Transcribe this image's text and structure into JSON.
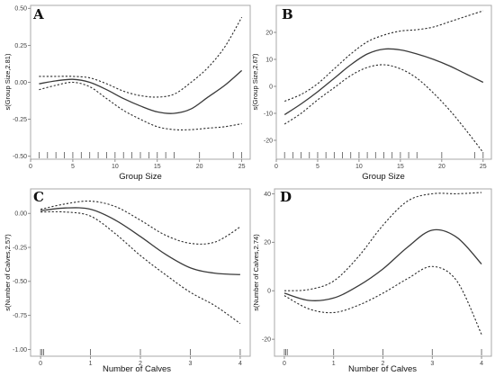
{
  "chart_data": [
    {
      "panel": "A",
      "type": "line",
      "xlabel": "Group Size",
      "ylabel": "s(Group Size,2.81)",
      "xlim": [
        0,
        26
      ],
      "ylim": [
        -0.52,
        0.52
      ],
      "xticks": [
        0,
        5,
        10,
        15,
        20,
        25
      ],
      "yticks": [
        -0.5,
        -0.25,
        0,
        0.25,
        0.5
      ],
      "ytick_labels": [
        "-0.50",
        "-0.25",
        "0.00",
        "0.25",
        "0.50"
      ],
      "x": [
        1,
        3,
        5,
        7,
        9,
        11,
        13,
        15,
        17,
        19,
        21,
        23,
        25
      ],
      "fit": [
        -0.01,
        0.01,
        0.02,
        0.0,
        -0.05,
        -0.11,
        -0.16,
        -0.2,
        -0.21,
        -0.18,
        -0.1,
        -0.02,
        0.08
      ],
      "upper": [
        0.04,
        0.04,
        0.04,
        0.03,
        -0.01,
        -0.06,
        -0.09,
        -0.1,
        -0.08,
        0.0,
        0.1,
        0.24,
        0.44
      ],
      "lower": [
        -0.05,
        -0.02,
        0.0,
        -0.03,
        -0.11,
        -0.19,
        -0.25,
        -0.3,
        -0.32,
        -0.32,
        -0.31,
        -0.3,
        -0.28
      ],
      "rug": [
        1,
        2,
        3,
        4,
        5,
        6,
        7,
        8,
        9,
        10,
        11,
        12,
        13,
        14,
        15,
        16,
        17,
        20,
        24,
        25
      ],
      "grid": false
    },
    {
      "panel": "B",
      "type": "line",
      "xlabel": "Group Size",
      "ylabel": "s(Group Size,2.67)",
      "xlim": [
        0,
        26
      ],
      "ylim": [
        -27,
        30
      ],
      "xticks": [
        0,
        5,
        10,
        15,
        20,
        25
      ],
      "yticks": [
        -20,
        -10,
        0,
        10,
        20
      ],
      "ytick_labels": [
        "-20",
        "-10",
        "0",
        "10",
        "20"
      ],
      "x": [
        1,
        3,
        5,
        7,
        9,
        11,
        13,
        15,
        17,
        19,
        21,
        23,
        25
      ],
      "fit": [
        -10.5,
        -6.5,
        -2.0,
        3.0,
        8.0,
        12.0,
        13.8,
        13.5,
        12.0,
        10.0,
        7.5,
        4.5,
        1.5
      ],
      "upper": [
        -5.5,
        -3.0,
        1.0,
        6.5,
        12.0,
        16.5,
        19.0,
        20.5,
        21.0,
        22.0,
        24.0,
        26.0,
        28.0
      ],
      "lower": [
        -14.0,
        -10.0,
        -5.0,
        -0.5,
        4.0,
        7.0,
        8.0,
        6.5,
        3.0,
        -2.5,
        -9.0,
        -16.5,
        -24.5
      ],
      "rug": [
        1,
        2,
        3,
        4,
        5,
        6,
        7,
        8,
        9,
        10,
        11,
        12,
        13,
        14,
        15,
        16,
        17,
        20,
        24,
        25
      ],
      "grid": false
    },
    {
      "panel": "C",
      "type": "line",
      "xlabel": "Number of Calves",
      "ylabel": "s(Number of Calves,2.57)",
      "xlim": [
        -0.2,
        4.2
      ],
      "ylim": [
        -1.05,
        0.18
      ],
      "xticks": [
        0,
        1,
        2,
        3,
        4
      ],
      "yticks": [
        -1.0,
        -0.75,
        -0.5,
        -0.25,
        0
      ],
      "ytick_labels": [
        "-1.00",
        "-0.75",
        "-0.50",
        "-0.25",
        "0.00"
      ],
      "x": [
        0,
        0.5,
        1,
        1.5,
        2,
        2.5,
        3,
        3.5,
        4
      ],
      "fit": [
        0.02,
        0.04,
        0.03,
        -0.05,
        -0.17,
        -0.3,
        -0.4,
        -0.44,
        -0.45
      ],
      "upper": [
        0.03,
        0.07,
        0.09,
        0.05,
        -0.05,
        -0.16,
        -0.22,
        -0.21,
        -0.1
      ],
      "lower": [
        0.01,
        0.01,
        -0.02,
        -0.15,
        -0.31,
        -0.45,
        -0.58,
        -0.68,
        -0.81
      ],
      "rug": [
        0,
        0.03,
        0.06,
        1,
        2,
        3,
        4
      ],
      "grid": false
    },
    {
      "panel": "D",
      "type": "line",
      "xlabel": "Number of Calves",
      "ylabel": "s(Number of Calves,2.74)",
      "xlim": [
        -0.2,
        4.2
      ],
      "ylim": [
        -27,
        42
      ],
      "xticks": [
        0,
        1,
        2,
        3,
        4
      ],
      "yticks": [
        -20,
        0,
        20,
        40
      ],
      "ytick_labels": [
        "-20",
        "0",
        "20",
        "40"
      ],
      "x": [
        0,
        0.5,
        1,
        1.5,
        2,
        2.5,
        3,
        3.5,
        4
      ],
      "fit": [
        -1.0,
        -4.0,
        -3.0,
        2.0,
        9.0,
        18.0,
        25.0,
        22.0,
        11.0
      ],
      "upper": [
        0.0,
        0.5,
        4.0,
        14.0,
        27.0,
        37.0,
        40.0,
        40.0,
        40.5
      ],
      "lower": [
        -2.0,
        -7.5,
        -9.0,
        -6.0,
        -1.0,
        5.0,
        10.0,
        4.0,
        -18.0
      ],
      "rug": [
        0,
        0.03,
        0.06,
        1,
        2,
        3,
        4
      ],
      "grid": false
    }
  ]
}
